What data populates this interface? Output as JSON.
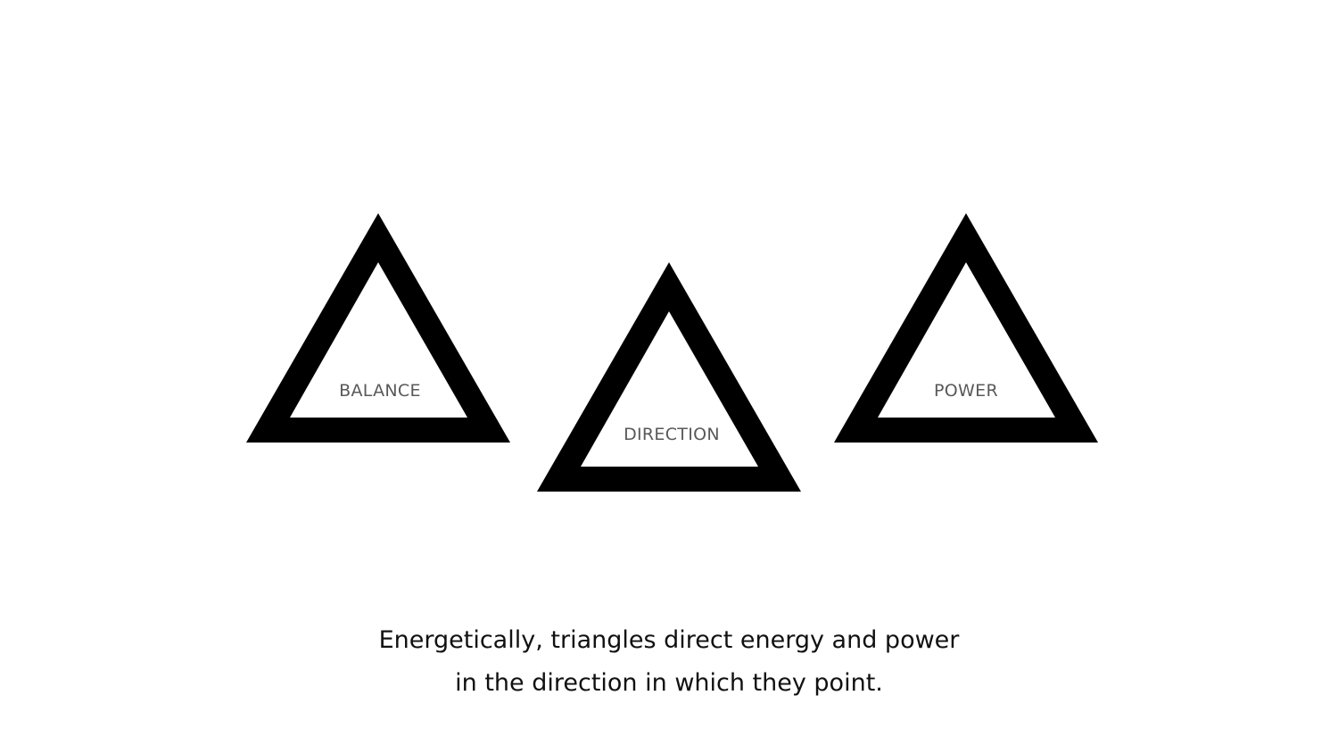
{
  "triangles": [
    {
      "label": "BALANCE"
    },
    {
      "label": "DIRECTION"
    },
    {
      "label": "POWER"
    }
  ],
  "caption": {
    "line1": "Energetically, triangles direct energy and power",
    "line2": "in the direction in which they point."
  },
  "colors": {
    "background": "#ffffff",
    "triangle_stroke": "#000000",
    "label_text": "#595959",
    "caption_text": "#111111"
  }
}
